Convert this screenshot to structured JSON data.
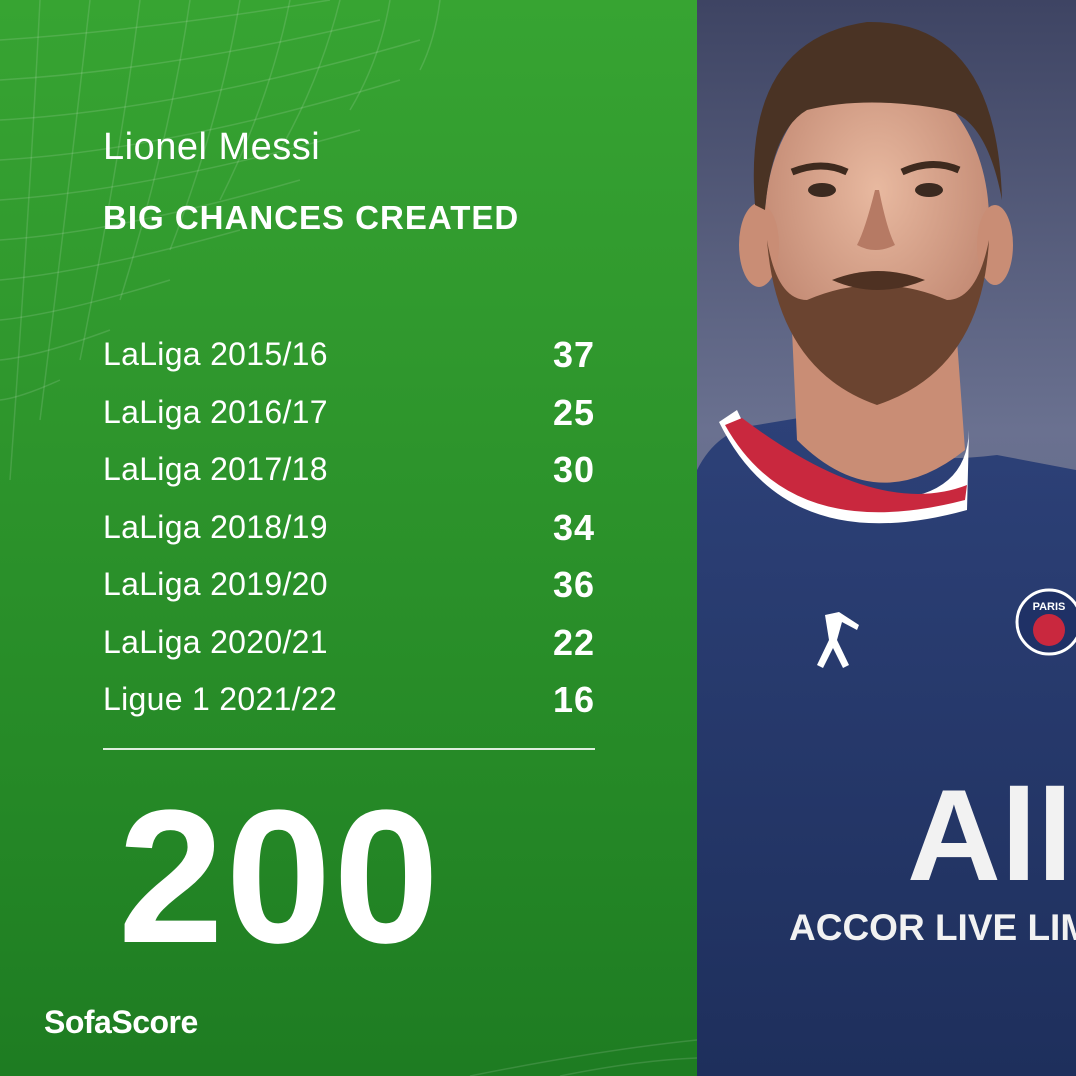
{
  "header": {
    "player_name": "Lionel Messi",
    "stat_title": "BIG CHANCES CREATED"
  },
  "seasons": [
    {
      "label": "LaLiga 2015/16",
      "value": "37"
    },
    {
      "label": "LaLiga 2016/17",
      "value": "25"
    },
    {
      "label": "LaLiga 2017/18",
      "value": "30"
    },
    {
      "label": "LaLiga 2018/19",
      "value": "34"
    },
    {
      "label": "LaLiga 2019/20",
      "value": "36"
    },
    {
      "label": "LaLiga 2020/21",
      "value": "22"
    },
    {
      "label": "Ligue 1 2021/22",
      "value": "16"
    }
  ],
  "total": "200",
  "brand": "SofaScore",
  "photo": {
    "shirt_sponsor_line1": "All",
    "shirt_sponsor_line2": "ACCOR LIVE LIM",
    "crest_text": "PARIS"
  },
  "colors": {
    "panel_green": "#2f972d",
    "text": "#ffffff",
    "shirt_navy": "#253a6e",
    "collar_red": "#c9283e"
  }
}
